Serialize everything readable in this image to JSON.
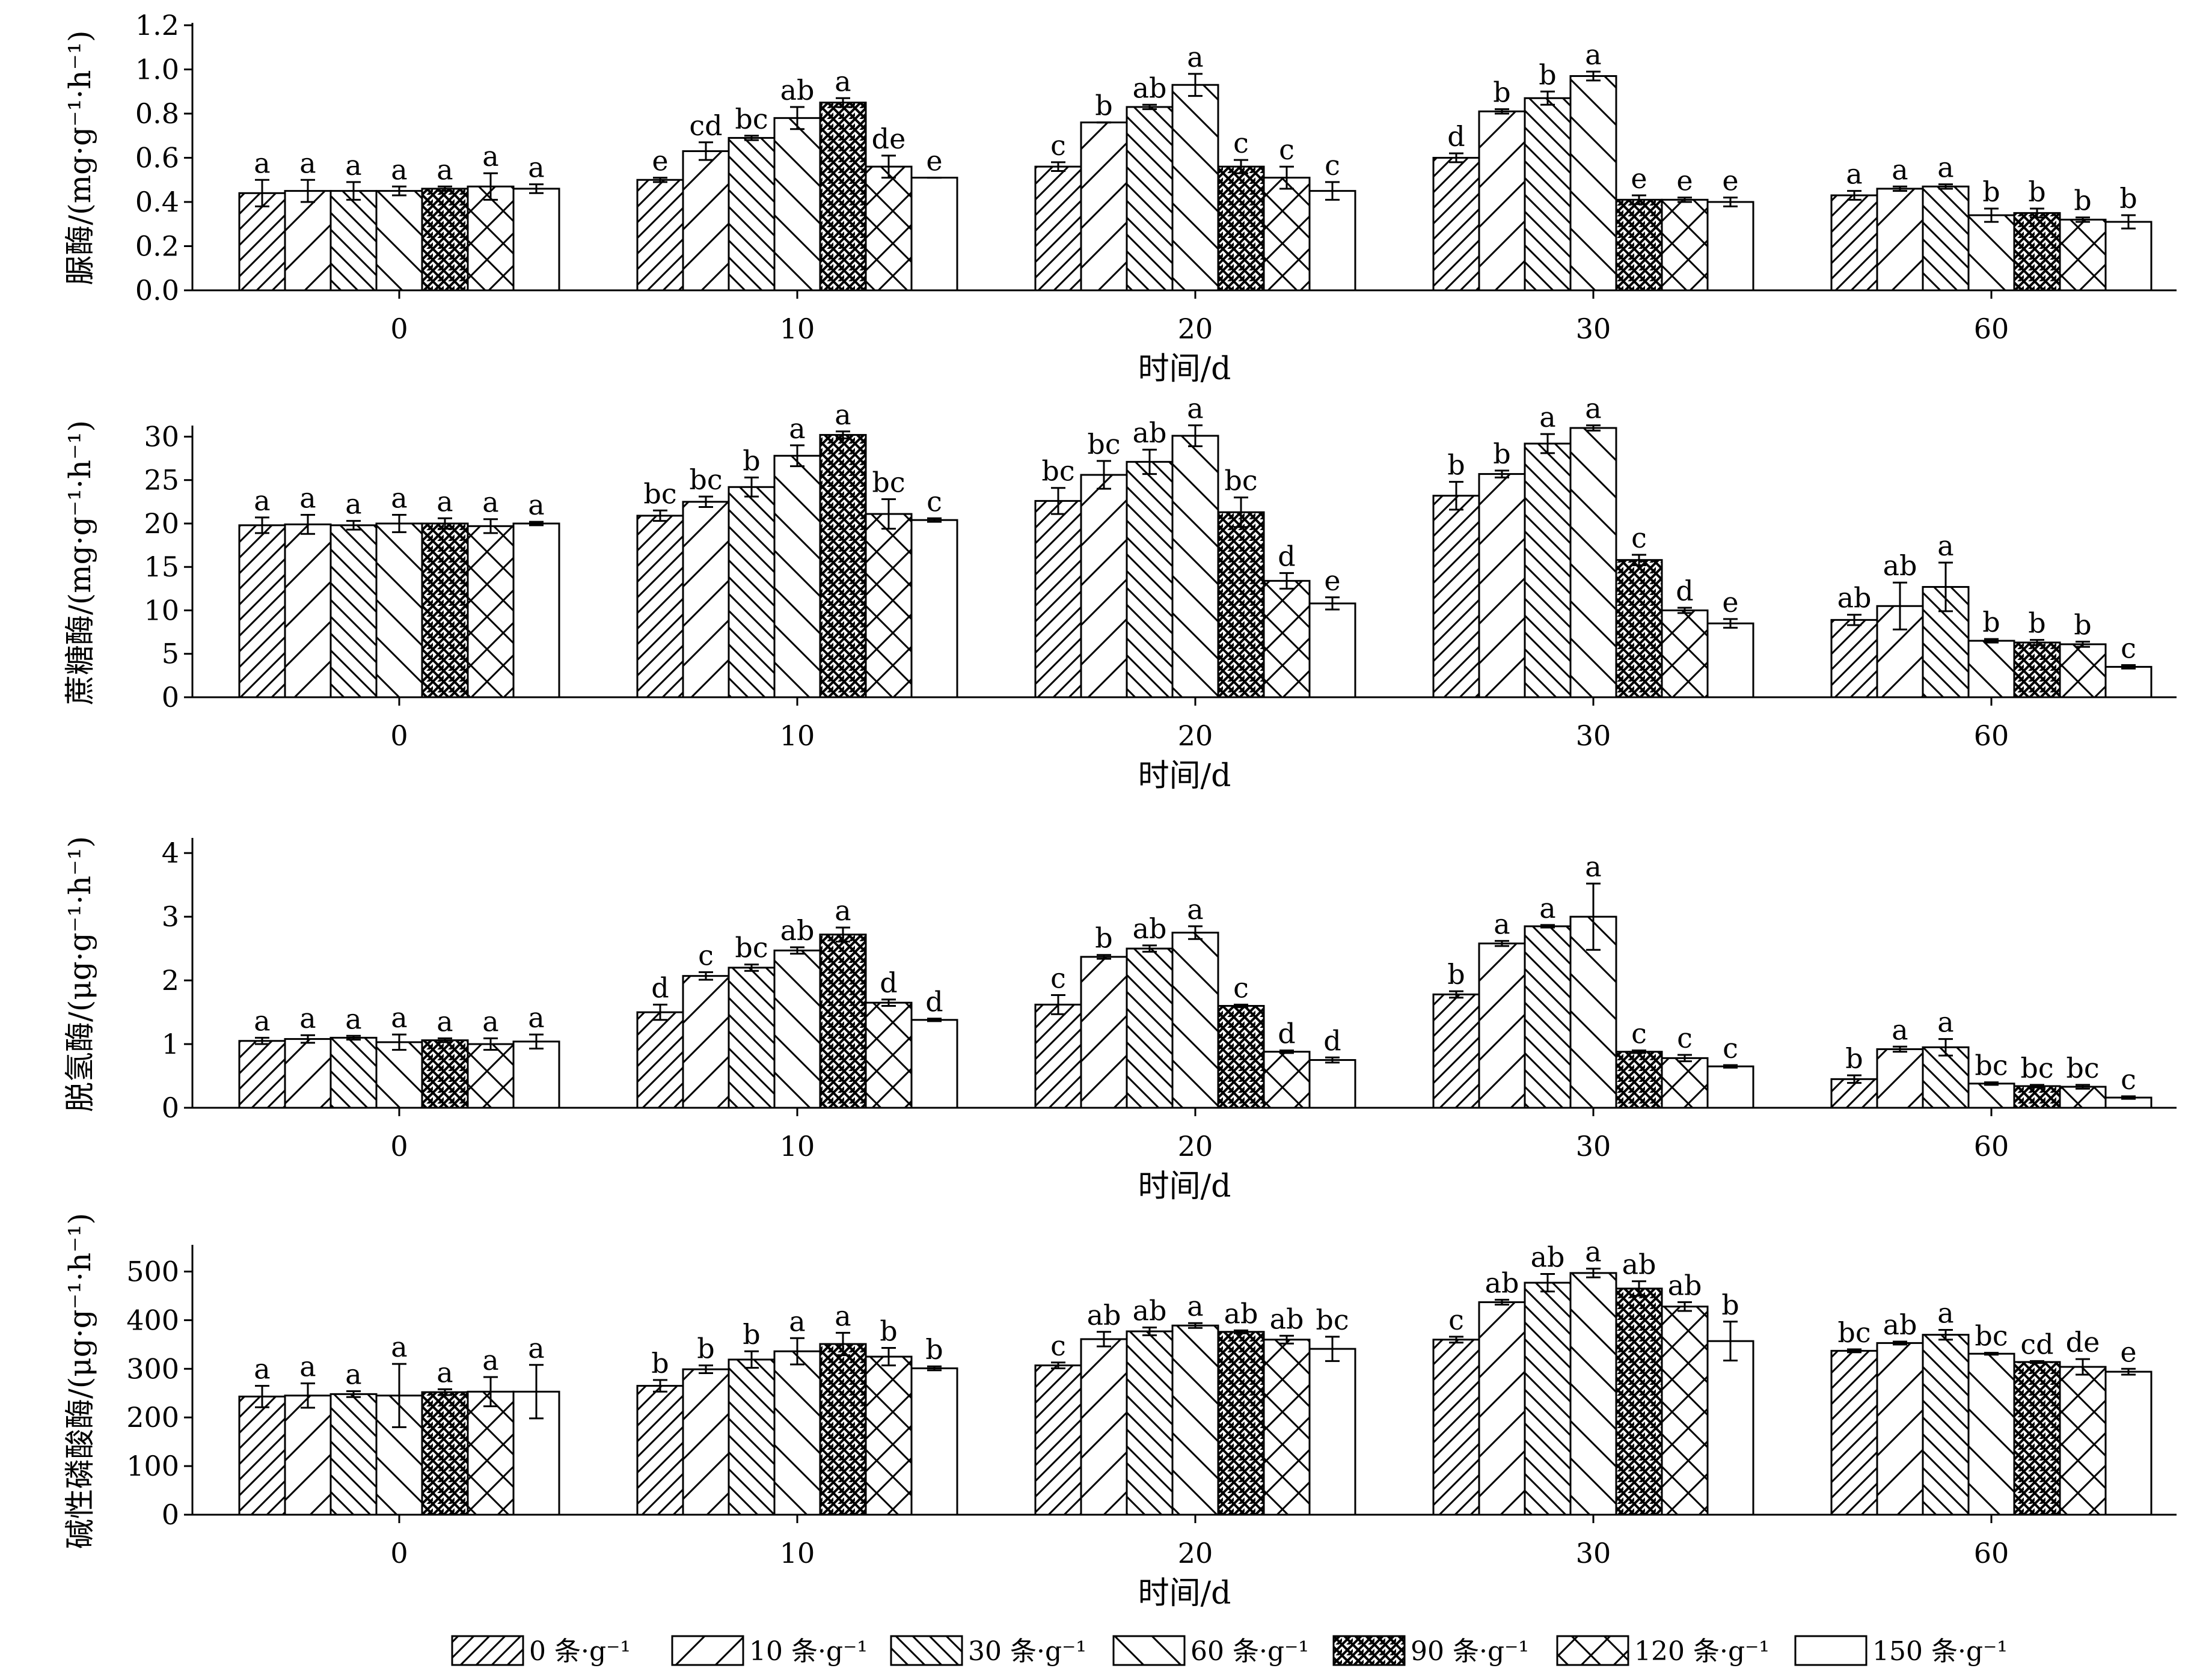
{
  "x_label": "时间/d",
  "legend": [
    "0 条·g⁻¹",
    "10 条·g⁻¹",
    "30 条·g⁻¹",
    "60 条·g⁻¹",
    "90 条·g⁻¹",
    "120 条·g⁻¹",
    "150 条·g⁻¹"
  ],
  "chart_data": [
    {
      "type": "bar",
      "ylabel": "脲酶/(mg·g⁻¹·h⁻¹)",
      "ylim": [
        0,
        1.2
      ],
      "yticks": [
        "0.0",
        "0.2",
        "0.4",
        "0.6",
        "0.8",
        "1.0",
        "1.2"
      ],
      "ytick_values": [
        0,
        0.2,
        0.4,
        0.6,
        0.8,
        1.0,
        1.2
      ],
      "categories": [
        "0",
        "10",
        "20",
        "30",
        "60"
      ],
      "series": [
        {
          "name": "0 条·g⁻¹",
          "values": [
            0.44,
            0.5,
            0.56,
            0.6,
            0.43
          ],
          "errors": [
            0.06,
            0.01,
            0.02,
            0.02,
            0.02
          ],
          "letters": [
            "a",
            "e",
            "c",
            "d",
            "a"
          ]
        },
        {
          "name": "10 条·g⁻¹",
          "values": [
            0.45,
            0.63,
            0.76,
            0.81,
            0.46
          ],
          "errors": [
            0.05,
            0.04,
            0.0,
            0.01,
            0.01
          ],
          "letters": [
            "a",
            "cd",
            "b",
            "b",
            "a"
          ]
        },
        {
          "name": "30 条·g⁻¹",
          "values": [
            0.45,
            0.69,
            0.83,
            0.87,
            0.47
          ],
          "errors": [
            0.04,
            0.01,
            0.01,
            0.03,
            0.01
          ],
          "letters": [
            "a",
            "bc",
            "ab",
            "b",
            "a"
          ]
        },
        {
          "name": "60 条·g⁻¹",
          "values": [
            0.45,
            0.78,
            0.93,
            0.97,
            0.34
          ],
          "errors": [
            0.02,
            0.05,
            0.05,
            0.02,
            0.03
          ],
          "letters": [
            "a",
            "ab",
            "a",
            "a",
            "b"
          ]
        },
        {
          "name": "90 条·g⁻¹",
          "values": [
            0.46,
            0.85,
            0.56,
            0.41,
            0.35
          ],
          "errors": [
            0.01,
            0.02,
            0.03,
            0.02,
            0.02
          ],
          "letters": [
            "a",
            "a",
            "c",
            "e",
            "b"
          ]
        },
        {
          "name": "120 条·g⁻¹",
          "values": [
            0.47,
            0.56,
            0.51,
            0.41,
            0.32
          ],
          "errors": [
            0.06,
            0.05,
            0.05,
            0.01,
            0.01
          ],
          "letters": [
            "a",
            "de",
            "c",
            "e",
            "b"
          ]
        },
        {
          "name": "150 条·g⁻¹",
          "values": [
            0.46,
            0.51,
            0.45,
            0.4,
            0.31
          ],
          "errors": [
            0.02,
            0.0,
            0.04,
            0.02,
            0.03
          ],
          "letters": [
            "a",
            "e",
            "c",
            "e",
            "b"
          ]
        }
      ]
    },
    {
      "type": "bar",
      "ylabel": "蔗糖酶/(mg·g⁻¹·h⁻¹)",
      "ylim": [
        0,
        31
      ],
      "yticks": [
        "0",
        "5",
        "10",
        "15",
        "20",
        "25",
        "30"
      ],
      "ytick_values": [
        0,
        5,
        10,
        15,
        20,
        25,
        30
      ],
      "categories": [
        "0",
        "10",
        "20",
        "30",
        "60"
      ],
      "series": [
        {
          "name": "0 条·g⁻¹",
          "values": [
            19.8,
            20.9,
            22.6,
            23.2,
            8.9
          ],
          "errors": [
            0.9,
            0.6,
            1.5,
            1.6,
            0.6
          ],
          "letters": [
            "a",
            "bc",
            "bc",
            "b",
            "ab"
          ]
        },
        {
          "name": "10 条·g⁻¹",
          "values": [
            19.9,
            22.5,
            25.6,
            25.7,
            10.5
          ],
          "errors": [
            1.1,
            0.6,
            1.6,
            0.4,
            2.7
          ],
          "letters": [
            "a",
            "bc",
            "bc",
            "b",
            "ab"
          ]
        },
        {
          "name": "30 条·g⁻¹",
          "values": [
            19.8,
            24.2,
            27.1,
            29.2,
            12.7
          ],
          "errors": [
            0.5,
            1.1,
            1.4,
            1.1,
            2.8
          ],
          "letters": [
            "a",
            "b",
            "ab",
            "a",
            "a"
          ]
        },
        {
          "name": "60 条·g⁻¹",
          "values": [
            20.0,
            27.8,
            30.1,
            31.0,
            6.5
          ],
          "errors": [
            1.0,
            1.2,
            1.2,
            0.3,
            0.2
          ],
          "letters": [
            "a",
            "a",
            "a",
            "a",
            "b"
          ]
        },
        {
          "name": "90 条·g⁻¹",
          "values": [
            20.0,
            30.2,
            21.3,
            15.8,
            6.3
          ],
          "errors": [
            0.6,
            0.4,
            1.7,
            0.6,
            0.3
          ],
          "letters": [
            "a",
            "a",
            "bc",
            "c",
            "b"
          ]
        },
        {
          "name": "120 条·g⁻¹",
          "values": [
            19.7,
            21.1,
            13.4,
            10.0,
            6.1
          ],
          "errors": [
            0.8,
            1.7,
            0.9,
            0.3,
            0.3
          ],
          "letters": [
            "a",
            "bc",
            "d",
            "d",
            "b"
          ]
        },
        {
          "name": "150 条·g⁻¹",
          "values": [
            20.0,
            20.4,
            10.8,
            8.5,
            3.5
          ],
          "errors": [
            0.2,
            0.2,
            0.7,
            0.5,
            0.2
          ],
          "letters": [
            "a",
            "c",
            "e",
            "e",
            "c"
          ]
        }
      ]
    },
    {
      "type": "bar",
      "ylabel": "脱氢酶/(μg·g⁻¹·h⁻¹)",
      "ylim": [
        0,
        4.2
      ],
      "yticks": [
        "0",
        "1",
        "2",
        "3",
        "4"
      ],
      "ytick_values": [
        0,
        1,
        2,
        3,
        4
      ],
      "categories": [
        "0",
        "10",
        "20",
        "30",
        "60"
      ],
      "series": [
        {
          "name": "0 条·g⁻¹",
          "values": [
            1.05,
            1.5,
            1.62,
            1.78,
            0.45
          ],
          "errors": [
            0.05,
            0.12,
            0.15,
            0.05,
            0.06
          ],
          "letters": [
            "a",
            "d",
            "c",
            "b",
            "b"
          ]
        },
        {
          "name": "10 条·g⁻¹",
          "values": [
            1.08,
            2.07,
            2.37,
            2.58,
            0.92
          ],
          "errors": [
            0.06,
            0.06,
            0.03,
            0.04,
            0.04
          ],
          "letters": [
            "a",
            "c",
            "b",
            "a",
            "a"
          ]
        },
        {
          "name": "30 条·g⁻¹",
          "values": [
            1.1,
            2.2,
            2.5,
            2.85,
            0.95
          ],
          "errors": [
            0.03,
            0.05,
            0.05,
            0.02,
            0.13
          ],
          "letters": [
            "a",
            "bc",
            "ab",
            "a",
            "a"
          ]
        },
        {
          "name": "60 条·g⁻¹",
          "values": [
            1.03,
            2.47,
            2.75,
            3.0,
            0.38
          ],
          "errors": [
            0.12,
            0.05,
            0.1,
            0.52,
            0.02
          ],
          "letters": [
            "a",
            "ab",
            "a",
            "a",
            "bc"
          ]
        },
        {
          "name": "90 条·g⁻¹",
          "values": [
            1.06,
            2.72,
            1.6,
            0.88,
            0.34
          ],
          "errors": [
            0.03,
            0.11,
            0.02,
            0.02,
            0.02
          ],
          "letters": [
            "a",
            "a",
            "c",
            "c",
            "bc"
          ]
        },
        {
          "name": "120 条·g⁻¹",
          "values": [
            1.0,
            1.65,
            0.88,
            0.78,
            0.33
          ],
          "errors": [
            0.09,
            0.05,
            0.02,
            0.05,
            0.03
          ],
          "letters": [
            "a",
            "d",
            "d",
            "c",
            "bc"
          ]
        },
        {
          "name": "150 条·g⁻¹",
          "values": [
            1.04,
            1.38,
            0.75,
            0.65,
            0.16
          ],
          "errors": [
            0.11,
            0.02,
            0.04,
            0.02,
            0.02
          ],
          "letters": [
            "a",
            "d",
            "d",
            "c",
            "c"
          ]
        }
      ]
    },
    {
      "type": "bar",
      "ylabel": "碱性磷酸酶/(μg·g⁻¹·h⁻¹)",
      "ylim": [
        0,
        550
      ],
      "yticks": [
        "0",
        "100",
        "200",
        "300",
        "400",
        "500"
      ],
      "ytick_values": [
        0,
        100,
        200,
        300,
        400,
        500
      ],
      "categories": [
        "0",
        "10",
        "20",
        "30",
        "60"
      ],
      "series": [
        {
          "name": "0 条·g⁻¹",
          "values": [
            243,
            265,
            307,
            360,
            337
          ],
          "errors": [
            22,
            12,
            6,
            6,
            3
          ],
          "letters": [
            "a",
            "b",
            "c",
            "c",
            "bc"
          ]
        },
        {
          "name": "10 条·g⁻¹",
          "values": [
            245,
            299,
            361,
            437,
            353
          ],
          "errors": [
            25,
            8,
            15,
            5,
            3
          ],
          "letters": [
            "a",
            "b",
            "ab",
            "ab",
            "ab"
          ]
        },
        {
          "name": "30 条·g⁻¹",
          "values": [
            248,
            319,
            377,
            477,
            370
          ],
          "errors": [
            6,
            17,
            8,
            18,
            10
          ],
          "letters": [
            "a",
            "b",
            "ab",
            "ab",
            "a"
          ]
        },
        {
          "name": "60 条·g⁻¹",
          "values": [
            245,
            336,
            389,
            497,
            331
          ],
          "errors": [
            65,
            27,
            5,
            9,
            2
          ],
          "letters": [
            "a",
            "a",
            "a",
            "a",
            "bc"
          ]
        },
        {
          "name": "90 条·g⁻¹",
          "values": [
            252,
            351,
            376,
            465,
            314
          ],
          "errors": [
            6,
            23,
            3,
            15,
            2
          ],
          "letters": [
            "a",
            "a",
            "ab",
            "ab",
            "cd"
          ]
        },
        {
          "name": "120 条·g⁻¹",
          "values": [
            253,
            325,
            360,
            428,
            304
          ],
          "errors": [
            30,
            18,
            8,
            9,
            16
          ],
          "letters": [
            "a",
            "b",
            "ab",
            "ab",
            "de"
          ]
        },
        {
          "name": "150 条·g⁻¹",
          "values": [
            253,
            301,
            341,
            357,
            294
          ],
          "errors": [
            55,
            4,
            25,
            40,
            6
          ],
          "letters": [
            "a",
            "b",
            "bc",
            "b",
            "e"
          ]
        }
      ]
    }
  ]
}
